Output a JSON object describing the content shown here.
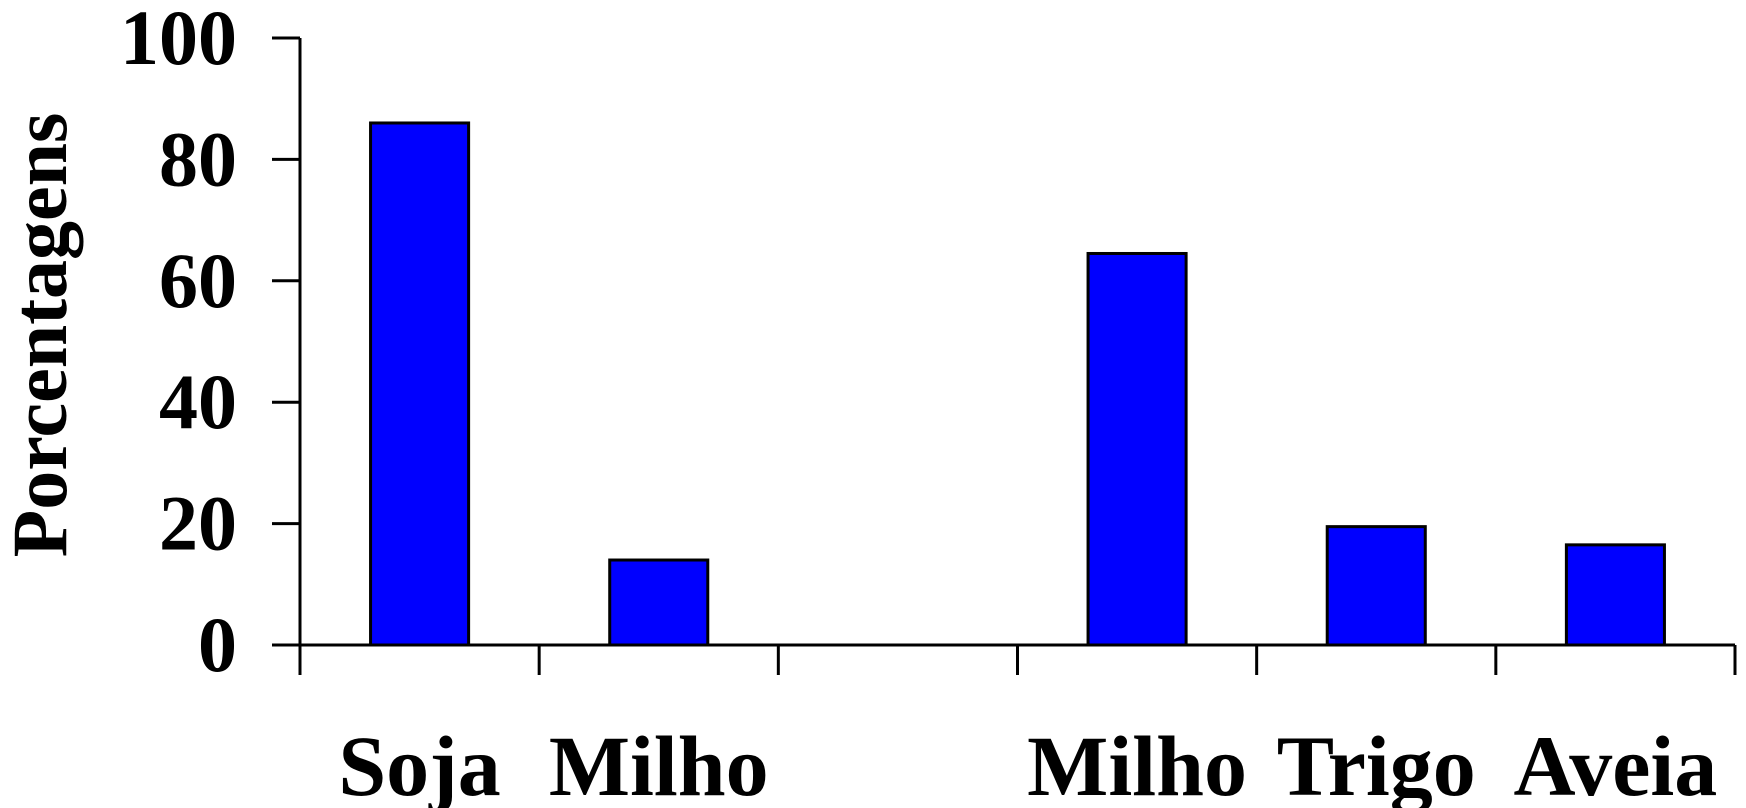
{
  "chart_data": {
    "type": "bar",
    "title": "",
    "xlabel": "",
    "ylabel": "Porcentagens",
    "ylim": [
      0,
      100
    ],
    "yticks": [
      "0",
      "20",
      "40",
      "60",
      "80",
      "100"
    ],
    "grid": false,
    "legend": "none",
    "bar_color": "#0000ff",
    "slots": [
      "Soja",
      "Milho",
      "",
      "Milho",
      "Trigo",
      "Aveia"
    ],
    "categories": [
      "Soja",
      "Milho",
      "Milho",
      "Trigo",
      "Aveia"
    ],
    "values": [
      86,
      14,
      64.5,
      19.5,
      16.5
    ]
  }
}
